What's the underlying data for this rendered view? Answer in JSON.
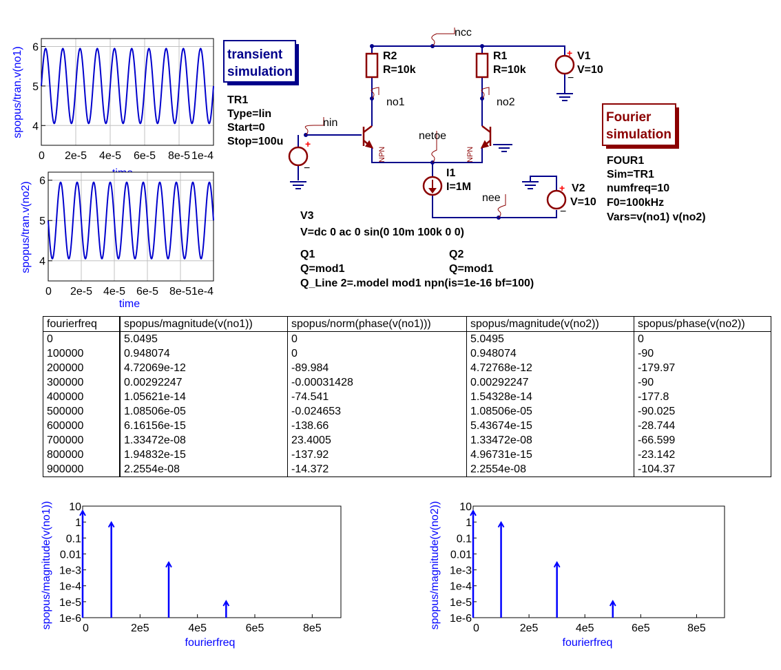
{
  "transient_box": {
    "line1": "transient",
    "line2": "simulation"
  },
  "fourier_box": {
    "line1": "Fourier",
    "line2": "simulation"
  },
  "tr1": {
    "name": "TR1",
    "type": "Type=lin",
    "start": "Start=0",
    "stop": "Stop=100u"
  },
  "four1": {
    "name": "FOUR1",
    "sim": "Sim=TR1",
    "numfreq": "numfreq=10",
    "f0": "F0=100kHz",
    "vars": "Vars=v(no1) v(no2)"
  },
  "schematic": {
    "r2_name": "R2",
    "r2_value": "R=10k",
    "r1_name": "R1",
    "r1_value": "R=10k",
    "v1_name": "V1",
    "v1_value": "V=10",
    "v2_name": "V2",
    "v2_value": "V=10",
    "i1_name": "I1",
    "i1_value": "I=1M",
    "v3_name": "V3",
    "v3_value": "V=dc 0 ac 0 sin(0 10m 100k 0 0)",
    "q1_name": "Q1",
    "q1_value": "Q=mod1",
    "q_line": "Q_Line 2=.model mod1 npn(is=1e-16 bf=100)",
    "q2_name": "Q2",
    "q2_value": "Q=mod1",
    "npn": "NPN",
    "nodes": {
      "ncc": "ncc",
      "no1": "no1",
      "no2": "no2",
      "nin": "nin",
      "netoe": "netoe",
      "nee": "nee"
    }
  },
  "plot_no1": {
    "ylabel": "spopus/tran.v(no1)",
    "xlabel": "time",
    "yticks": [
      "4",
      "5",
      "6"
    ],
    "xticks": [
      "0",
      "2e-5",
      "4e-5",
      "6e-5",
      "8e-5",
      "1e-4"
    ],
    "color": "#0000cd"
  },
  "plot_no2": {
    "ylabel": "spopus/tran.v(no2)",
    "xlabel": "time",
    "yticks": [
      "4",
      "5",
      "6"
    ],
    "xticks": [
      "0",
      "2e-5",
      "4e-5",
      "6e-5",
      "8e-5",
      "1e-4"
    ],
    "color": "#0000cd"
  },
  "table": {
    "headers": [
      "fourierfreq",
      "spopus/magnitude(v(no1))",
      "spopus/norm(phase(v(no1)))",
      "spopus/magnitude(v(no2))",
      "spopus/phase(v(no2))"
    ],
    "rows": [
      [
        "0",
        "5.0495",
        "0",
        "5.0495",
        "0"
      ],
      [
        "100000",
        "0.948074",
        "0",
        "0.948074",
        "-90"
      ],
      [
        "200000",
        "4.72069e-12",
        "-89.984",
        "4.72768e-12",
        "-179.97"
      ],
      [
        "300000",
        "0.00292247",
        "-0.00031428",
        "0.00292247",
        "-90"
      ],
      [
        "400000",
        "1.05621e-14",
        "-74.541",
        "1.54328e-14",
        "-177.8"
      ],
      [
        "500000",
        "1.08506e-05",
        "-0.024653",
        "1.08506e-05",
        "-90.025"
      ],
      [
        "600000",
        "6.16156e-15",
        "-138.66",
        "5.43674e-15",
        "-28.744"
      ],
      [
        "700000",
        "1.33472e-08",
        "23.4005",
        "1.33472e-08",
        "-66.599"
      ],
      [
        "800000",
        "1.94832e-15",
        "-137.92",
        "4.96731e-15",
        "-23.142"
      ],
      [
        "900000",
        "2.2554e-08",
        "-14.372",
        "2.2554e-08",
        "-104.37"
      ]
    ]
  },
  "chart_data": [
    {
      "type": "line",
      "ylabel": "spopus/tran.v(no1)",
      "xlabel": "time",
      "xlim": [
        0,
        0.0001
      ],
      "ylim": [
        3.5,
        6.2
      ],
      "grid": true,
      "series": [
        {
          "function": "5 + 0.948*sin(2*pi*100000*t)",
          "frequency_hz": 100000,
          "offset": 5.0495,
          "amplitude": 0.948
        }
      ]
    },
    {
      "type": "line",
      "ylabel": "spopus/tran.v(no2)",
      "xlabel": "time",
      "xlim": [
        0,
        0.0001
      ],
      "ylim": [
        3.5,
        6.2
      ],
      "grid": true,
      "series": [
        {
          "function": "5 - 0.948*sin(2*pi*100000*t)",
          "frequency_hz": 100000,
          "offset": 5.0495,
          "amplitude": 0.948
        }
      ]
    },
    {
      "type": "bar",
      "ylabel": "spopus/magnitude(v(no1))",
      "xlabel": "fourierfreq",
      "log_y": true,
      "ylim": [
        1e-06,
        10
      ],
      "xlim": [
        0,
        900000
      ],
      "xticks": [
        "0",
        "2e5",
        "4e5",
        "6e5",
        "8e5"
      ],
      "yticks": [
        "10",
        "1",
        "0.1",
        "0.01",
        "1e-3",
        "1e-4",
        "1e-5",
        "1e-6"
      ],
      "x": [
        0,
        100000,
        300000,
        500000
      ],
      "values": [
        5.0495,
        0.948074,
        0.00292247,
        1.08506e-05
      ]
    },
    {
      "type": "bar",
      "ylabel": "spopus/magnitude(v(no2))",
      "xlabel": "fourierfreq",
      "log_y": true,
      "ylim": [
        1e-06,
        10
      ],
      "xlim": [
        0,
        900000
      ],
      "xticks": [
        "0",
        "2e5",
        "4e5",
        "6e5",
        "8e5"
      ],
      "yticks": [
        "10",
        "1",
        "0.1",
        "0.01",
        "1e-3",
        "1e-4",
        "1e-5",
        "1e-6"
      ],
      "x": [
        0,
        100000,
        300000,
        500000
      ],
      "values": [
        5.0495,
        0.948074,
        0.00292247,
        1.08506e-05
      ]
    }
  ]
}
